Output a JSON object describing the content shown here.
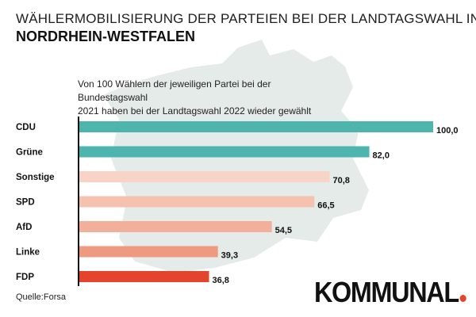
{
  "header": {
    "title_line1": "WÄHLERMOBILISIERUNG DER PARTEIEN BEI DER LANDTAGSWAHL IN",
    "title_line2": "NORDRHEIN-WESTFALEN"
  },
  "footer": {
    "source": "Quelle:Forsa",
    "logo_text": "KOMMUNAL"
  },
  "colors": {
    "map": "#e4ebe9",
    "axis": "#111111",
    "logo_dot": "#e4432d"
  },
  "chart_data": {
    "type": "bar",
    "orientation": "horizontal",
    "subtitle": "Von 100 Wählern der jeweiligen Partei bei der Bundestagswahl\n2021 haben bei der Landtagswahl 2022 wieder gewählt",
    "categories": [
      "CDU",
      "Grüne",
      "Sonstige",
      "SPD",
      "AfD",
      "Linke",
      "FDP"
    ],
    "values": [
      100.0,
      82.0,
      70.8,
      66.5,
      54.5,
      39.3,
      36.8
    ],
    "value_labels": [
      "100,0",
      "82,0",
      "70,8",
      "66,5",
      "54,5",
      "39,3",
      "36,8"
    ],
    "bar_colors": [
      "#4db5ae",
      "#4db5ae",
      "#f7d3c8",
      "#f5c2b0",
      "#f2b09b",
      "#ee9a80",
      "#e4432d"
    ],
    "xlim": [
      0,
      100
    ],
    "grid": false,
    "legend": "none"
  }
}
